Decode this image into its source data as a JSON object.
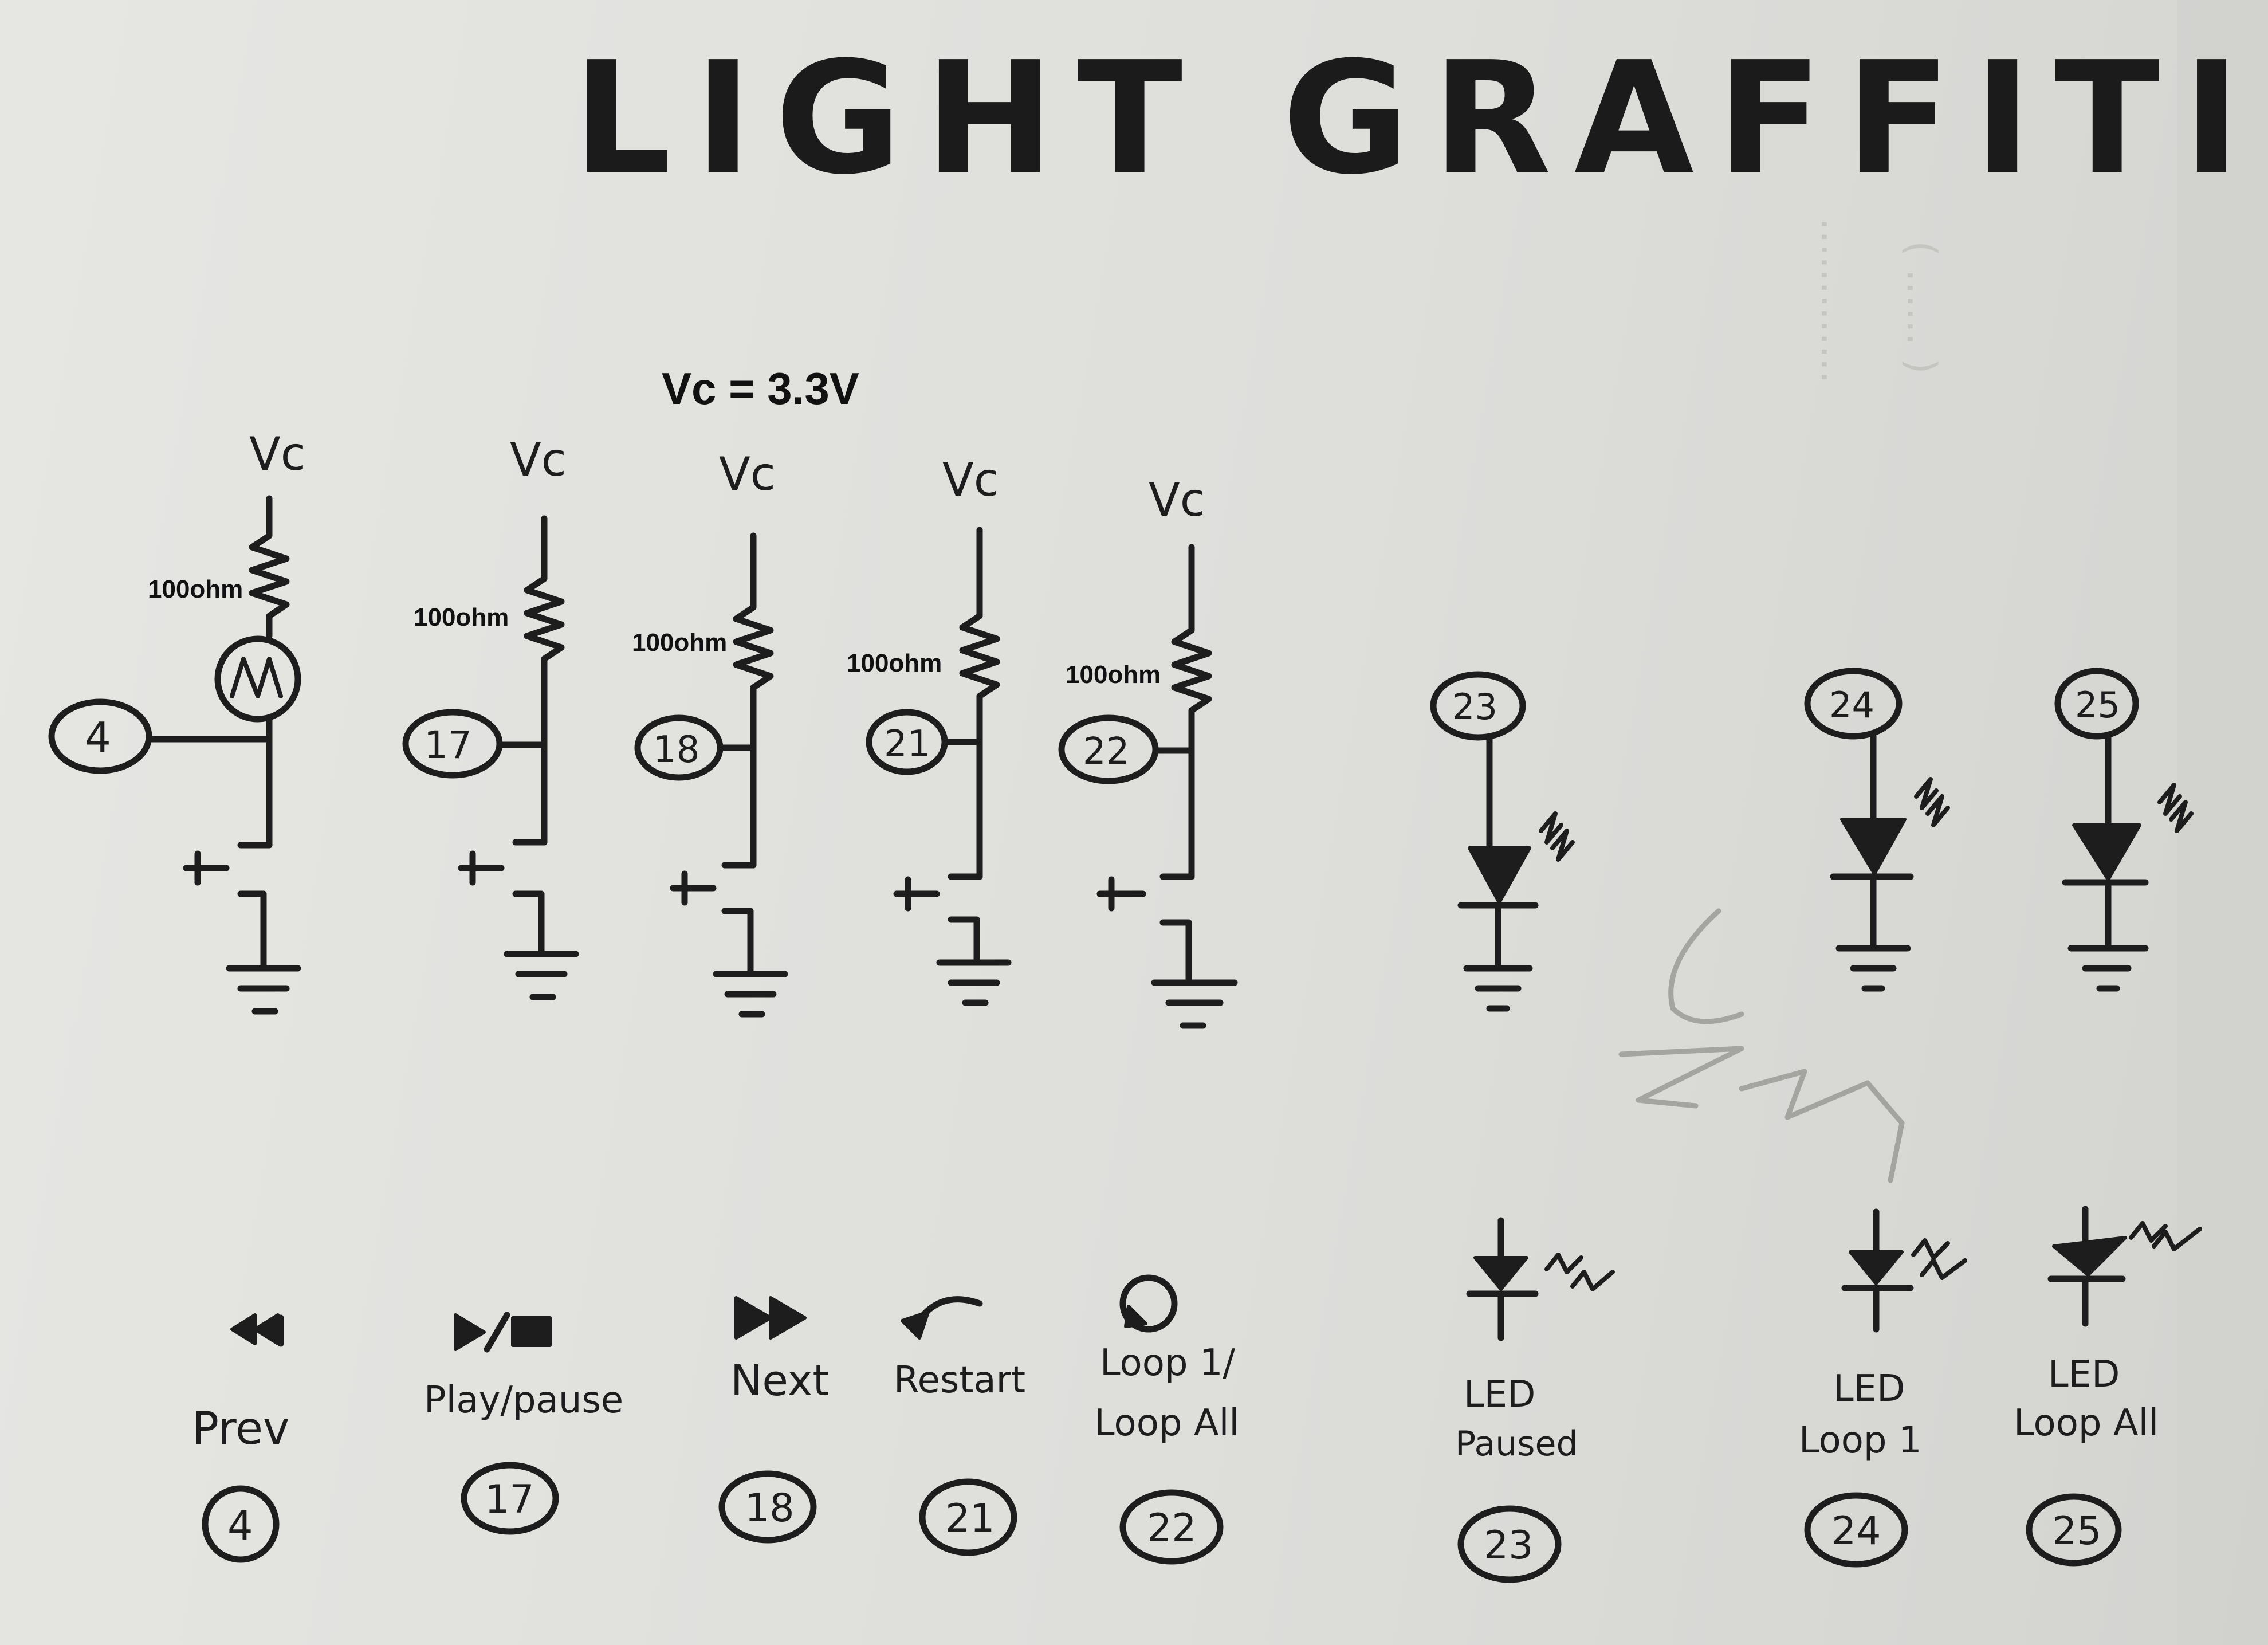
{
  "title": "LIGHT GRAFFITI",
  "supply_note": "Vc = 3.3V",
  "vc_label": "Vc",
  "resistor_label": "100ohm",
  "button_circuits": [
    {
      "pin": "4",
      "has_photo_element": true
    },
    {
      "pin": "17",
      "has_photo_element": false
    },
    {
      "pin": "18",
      "has_photo_element": false
    },
    {
      "pin": "21",
      "has_photo_element": false
    },
    {
      "pin": "22",
      "has_photo_element": false
    }
  ],
  "led_circuits": [
    {
      "pin": "23"
    },
    {
      "pin": "24"
    },
    {
      "pin": "25"
    }
  ],
  "legend": [
    {
      "icon": "rewind-icon",
      "label_line1": "Prev",
      "label_line2": "",
      "pin": "4"
    },
    {
      "icon": "play-pause-icon",
      "label_line1": "Play/pause",
      "label_line2": "",
      "pin": "17"
    },
    {
      "icon": "fast-forward-icon",
      "label_line1": "Next",
      "label_line2": "",
      "pin": "18"
    },
    {
      "icon": "restart-arrow-icon",
      "label_line1": "Restart",
      "label_line2": "",
      "pin": "21"
    },
    {
      "icon": "loop-icon",
      "label_line1": "Loop 1/",
      "label_line2": "Loop All",
      "pin": "22"
    },
    {
      "icon": "led-symbol-icon",
      "label_line1": "LED",
      "label_line2": "Paused",
      "pin": "23"
    },
    {
      "icon": "led-symbol-icon",
      "label_line1": "LED",
      "label_line2": "Loop 1",
      "pin": "24"
    },
    {
      "icon": "led-symbol-icon",
      "label_line1": "LED",
      "label_line2": "Loop All",
      "pin": "25"
    }
  ],
  "colors": {
    "ink": "#1d1d1d",
    "paper": "#e2e2df",
    "pencil": "#9a9a96"
  }
}
